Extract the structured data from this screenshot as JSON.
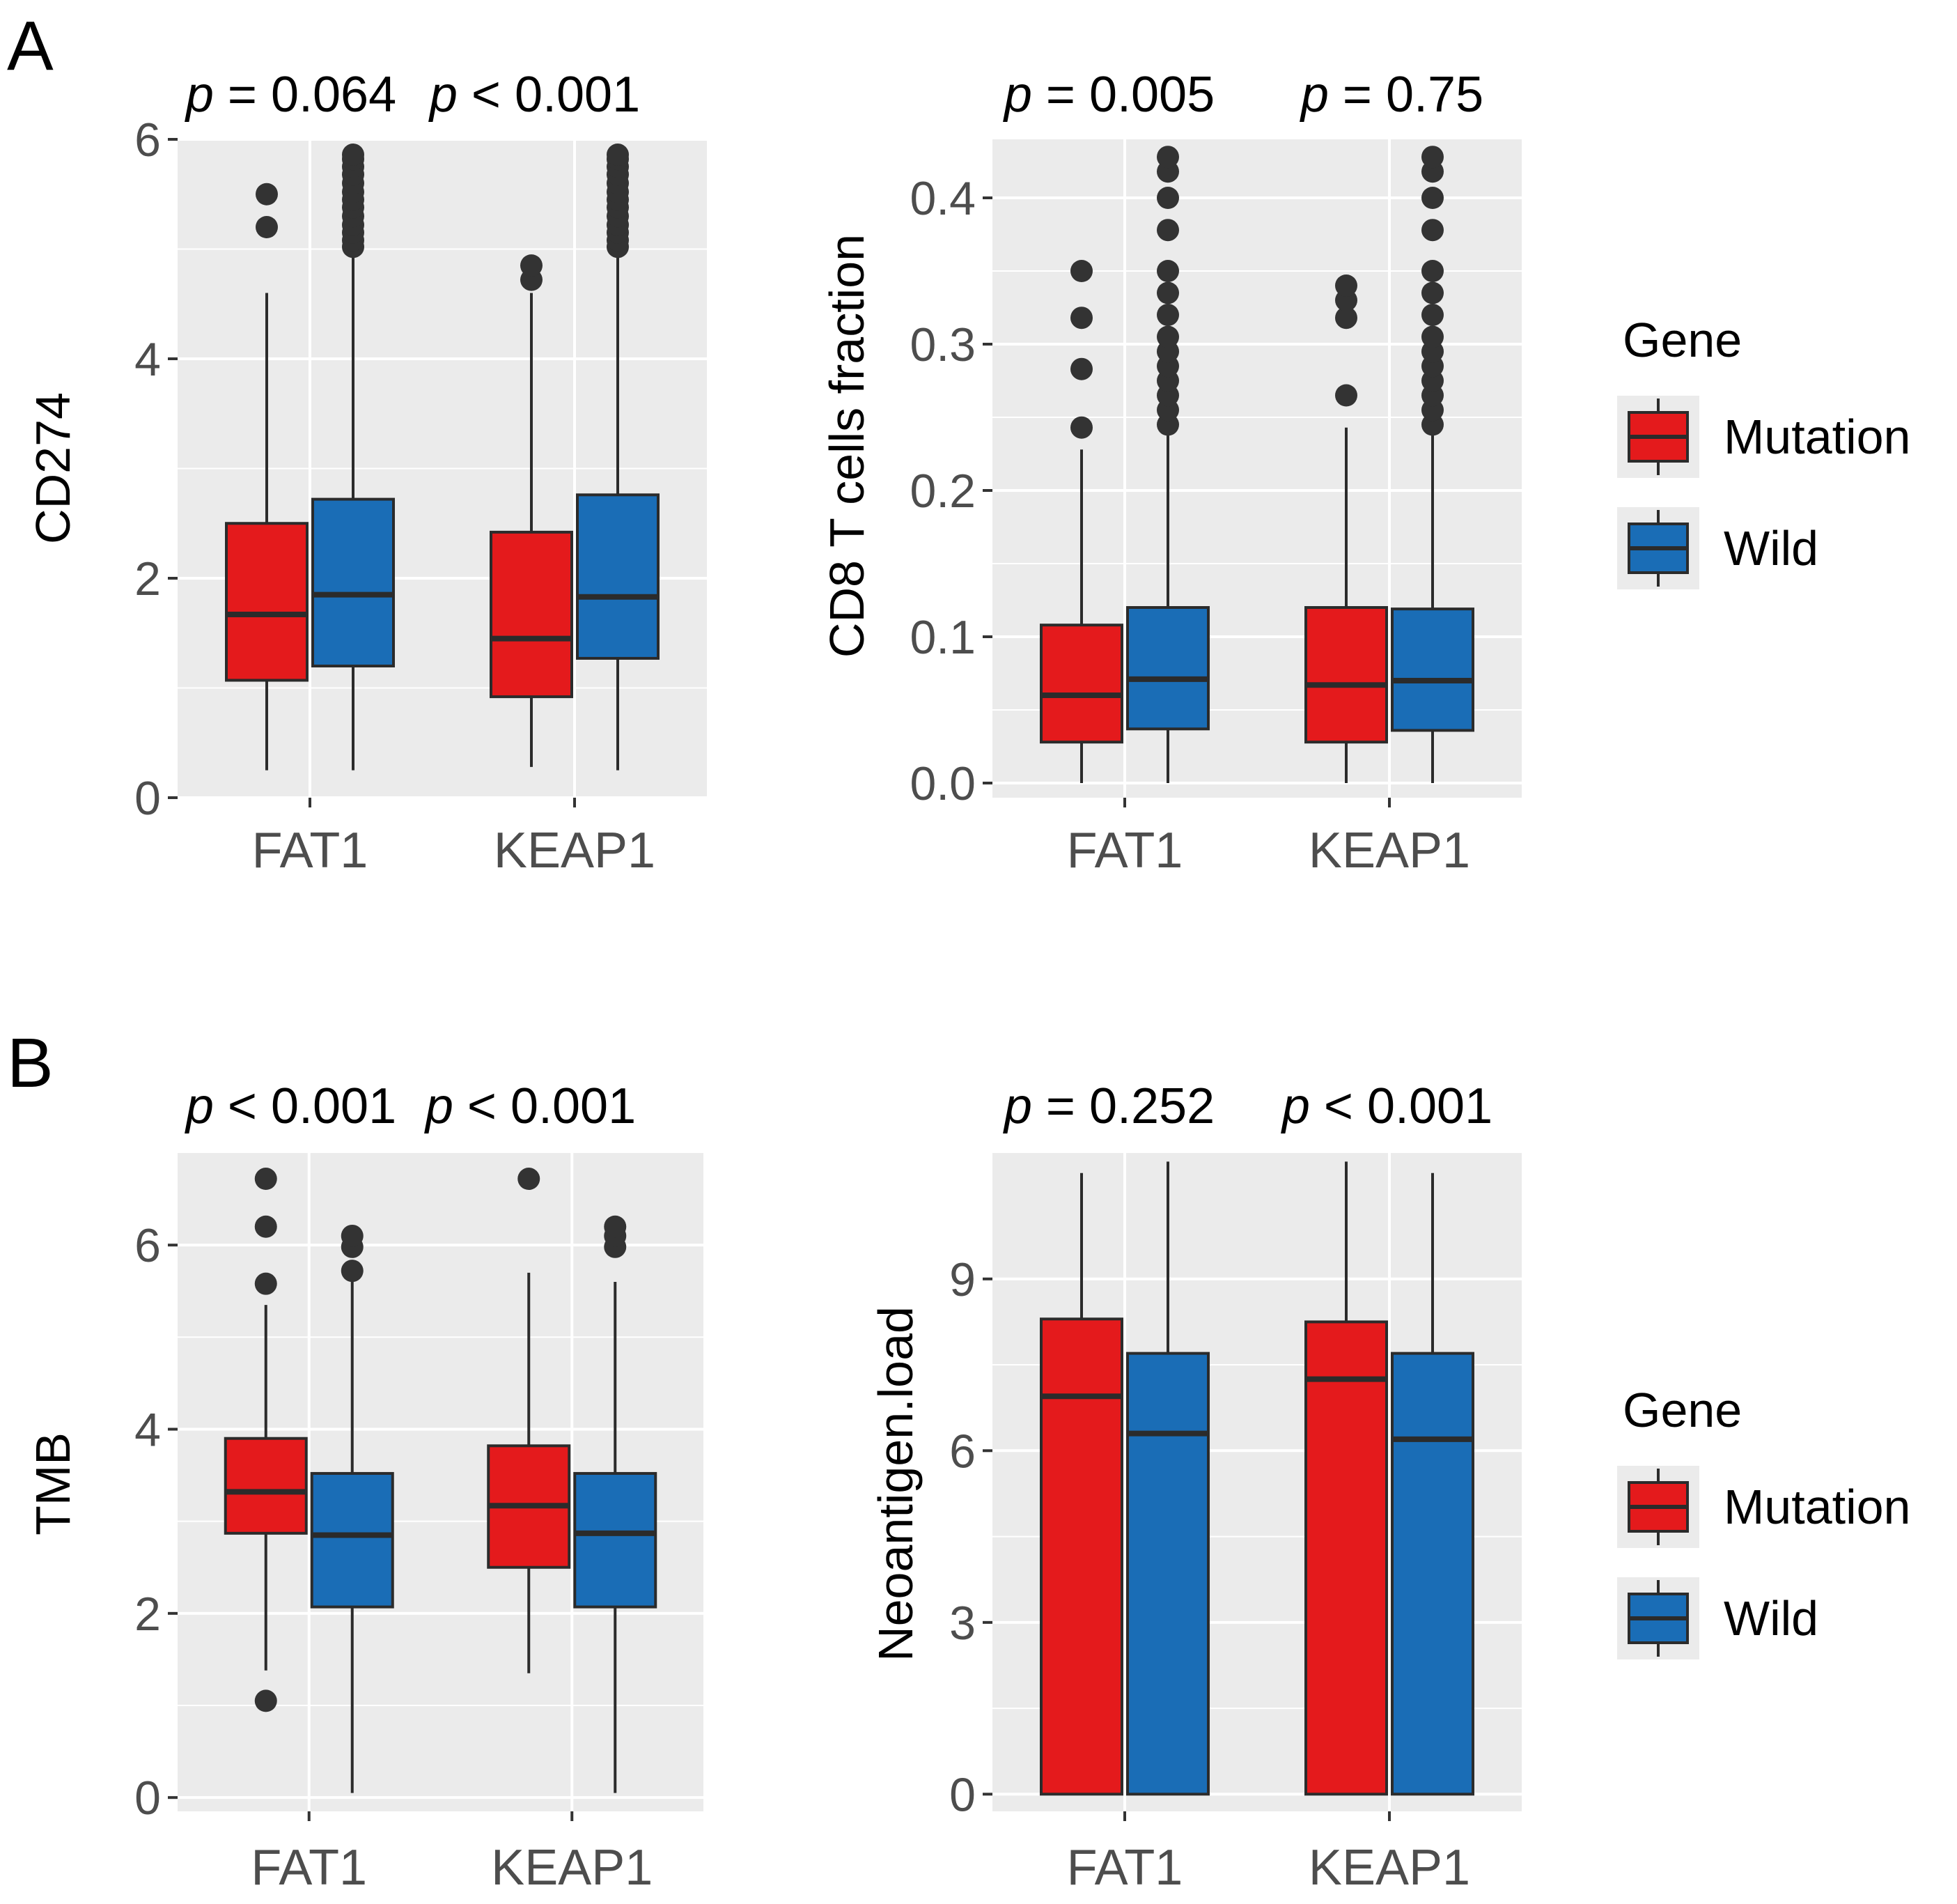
{
  "figure": {
    "panel_labels": [
      "A",
      "B"
    ]
  },
  "legend": {
    "title": "Gene",
    "items": [
      {
        "label": "Mutation",
        "color": "#e41a1c"
      },
      {
        "label": "Wild",
        "color": "#1a6db6"
      }
    ]
  },
  "colors": {
    "panel_background": "#ebebeb",
    "grid": "#ffffff",
    "box_outline": "#2b2b2b",
    "outlier": "#333333"
  },
  "chart_data": [
    {
      "type": "boxplot",
      "panel": "A",
      "ylabel": "CD274",
      "xlabel": "",
      "categories": [
        "FAT1",
        "KEAP1"
      ],
      "group_names": [
        "Mutation",
        "Wild"
      ],
      "ylim": [
        0,
        6
      ],
      "yticks": [
        0,
        2,
        4,
        6
      ],
      "yticklabels": [
        "0",
        "2",
        "4",
        "6"
      ],
      "grid": true,
      "pvalues": [
        {
          "italic": "p",
          "rest": " = 0.064"
        },
        {
          "italic": "p",
          "rest": " < 0.001"
        }
      ],
      "boxes": [
        {
          "category": "FAT1",
          "group": "Mutation",
          "lower_whisker": 0.25,
          "q1": 1.07,
          "median": 1.67,
          "q3": 2.5,
          "upper_whisker": 4.6,
          "outliers": [
            5.2,
            5.5
          ]
        },
        {
          "category": "FAT1",
          "group": "Wild",
          "lower_whisker": 0.25,
          "q1": 1.2,
          "median": 1.85,
          "q3": 2.72,
          "upper_whisker": 5.0,
          "outliers": [
            5.02,
            5.08,
            5.15,
            5.22,
            5.3,
            5.38,
            5.45,
            5.52,
            5.6,
            5.68,
            5.75,
            5.82,
            5.86
          ]
        },
        {
          "category": "KEAP1",
          "group": "Mutation",
          "lower_whisker": 0.28,
          "q1": 0.92,
          "median": 1.45,
          "q3": 2.42,
          "upper_whisker": 4.6,
          "outliers": [
            4.72,
            4.85
          ]
        },
        {
          "category": "KEAP1",
          "group": "Wild",
          "lower_whisker": 0.25,
          "q1": 1.27,
          "median": 1.83,
          "q3": 2.76,
          "upper_whisker": 5.0,
          "outliers": [
            5.02,
            5.08,
            5.15,
            5.22,
            5.3,
            5.38,
            5.45,
            5.52,
            5.6,
            5.68,
            5.75,
            5.82,
            5.86
          ]
        }
      ]
    },
    {
      "type": "boxplot",
      "panel": "A",
      "ylabel": "CD8 T cells fraction",
      "xlabel": "",
      "categories": [
        "FAT1",
        "KEAP1"
      ],
      "group_names": [
        "Mutation",
        "Wild"
      ],
      "ylim": [
        -0.01,
        0.44
      ],
      "yticks": [
        0.0,
        0.1,
        0.2,
        0.3,
        0.4
      ],
      "yticklabels": [
        "0.0",
        "0.1",
        "0.2",
        "0.3",
        "0.4"
      ],
      "grid": true,
      "pvalues": [
        {
          "italic": "p",
          "rest": " = 0.005"
        },
        {
          "italic": "p",
          "rest": " = 0.75"
        }
      ],
      "boxes": [
        {
          "category": "FAT1",
          "group": "Mutation",
          "lower_whisker": 0.0,
          "q1": 0.028,
          "median": 0.06,
          "q3": 0.108,
          "upper_whisker": 0.228,
          "outliers": [
            0.243,
            0.283,
            0.318,
            0.35
          ]
        },
        {
          "category": "FAT1",
          "group": "Wild",
          "lower_whisker": 0.0,
          "q1": 0.037,
          "median": 0.071,
          "q3": 0.12,
          "upper_whisker": 0.243,
          "outliers": [
            0.245,
            0.255,
            0.265,
            0.275,
            0.285,
            0.295,
            0.305,
            0.32,
            0.335,
            0.35,
            0.378,
            0.4,
            0.418,
            0.428
          ]
        },
        {
          "category": "KEAP1",
          "group": "Mutation",
          "lower_whisker": 0.0,
          "q1": 0.028,
          "median": 0.067,
          "q3": 0.12,
          "upper_whisker": 0.243,
          "outliers": [
            0.265,
            0.318,
            0.33,
            0.34
          ]
        },
        {
          "category": "KEAP1",
          "group": "Wild",
          "lower_whisker": 0.0,
          "q1": 0.036,
          "median": 0.07,
          "q3": 0.119,
          "upper_whisker": 0.243,
          "outliers": [
            0.245,
            0.255,
            0.265,
            0.275,
            0.285,
            0.295,
            0.305,
            0.32,
            0.335,
            0.35,
            0.378,
            0.4,
            0.418,
            0.428
          ]
        }
      ]
    },
    {
      "type": "boxplot",
      "panel": "B",
      "ylabel": "TMB",
      "xlabel": "",
      "categories": [
        "FAT1",
        "KEAP1"
      ],
      "group_names": [
        "Mutation",
        "Wild"
      ],
      "ylim": [
        -0.15,
        7.0
      ],
      "yticks": [
        0,
        2,
        4,
        6
      ],
      "yticklabels": [
        "0",
        "2",
        "4",
        "6"
      ],
      "grid": true,
      "pvalues": [
        {
          "italic": "p",
          "rest": " < 0.001"
        },
        {
          "italic": "p",
          "rest": " < 0.001"
        }
      ],
      "boxes": [
        {
          "category": "FAT1",
          "group": "Mutation",
          "lower_whisker": 1.38,
          "q1": 2.87,
          "median": 3.32,
          "q3": 3.9,
          "upper_whisker": 5.35,
          "outliers": [
            1.05,
            5.58,
            6.2,
            6.72
          ]
        },
        {
          "category": "FAT1",
          "group": "Wild",
          "lower_whisker": 0.05,
          "q1": 2.07,
          "median": 2.85,
          "q3": 3.52,
          "upper_whisker": 5.65,
          "outliers": [
            5.72,
            5.98,
            6.1
          ]
        },
        {
          "category": "KEAP1",
          "group": "Mutation",
          "lower_whisker": 1.35,
          "q1": 2.5,
          "median": 3.17,
          "q3": 3.82,
          "upper_whisker": 5.7,
          "outliers": [
            6.72
          ]
        },
        {
          "category": "KEAP1",
          "group": "Wild",
          "lower_whisker": 0.05,
          "q1": 2.07,
          "median": 2.87,
          "q3": 3.52,
          "upper_whisker": 5.6,
          "outliers": [
            5.98,
            6.1,
            6.2
          ]
        }
      ]
    },
    {
      "type": "boxplot",
      "panel": "B",
      "ylabel": "Neoantigen.load",
      "xlabel": "",
      "categories": [
        "FAT1",
        "KEAP1"
      ],
      "group_names": [
        "Mutation",
        "Wild"
      ],
      "ylim": [
        -0.3,
        11.2
      ],
      "yticks": [
        0,
        3,
        6,
        9
      ],
      "yticklabels": [
        "0",
        "3",
        "6",
        "9"
      ],
      "grid": true,
      "pvalues": [
        {
          "italic": "p",
          "rest": " = 0.252"
        },
        {
          "italic": "p",
          "rest": " < 0.001"
        }
      ],
      "boxes": [
        {
          "category": "FAT1",
          "group": "Mutation",
          "lower_whisker": 0,
          "q1": 0,
          "median": 6.95,
          "q3": 8.3,
          "upper_whisker": 10.85,
          "outliers": []
        },
        {
          "category": "FAT1",
          "group": "Wild",
          "lower_whisker": 0,
          "q1": 0,
          "median": 6.3,
          "q3": 7.7,
          "upper_whisker": 11.05,
          "outliers": []
        },
        {
          "category": "KEAP1",
          "group": "Mutation",
          "lower_whisker": 0,
          "q1": 0,
          "median": 7.25,
          "q3": 8.25,
          "upper_whisker": 11.05,
          "outliers": []
        },
        {
          "category": "KEAP1",
          "group": "Wild",
          "lower_whisker": 0,
          "q1": 0,
          "median": 6.2,
          "q3": 7.7,
          "upper_whisker": 10.85,
          "outliers": []
        }
      ]
    }
  ]
}
